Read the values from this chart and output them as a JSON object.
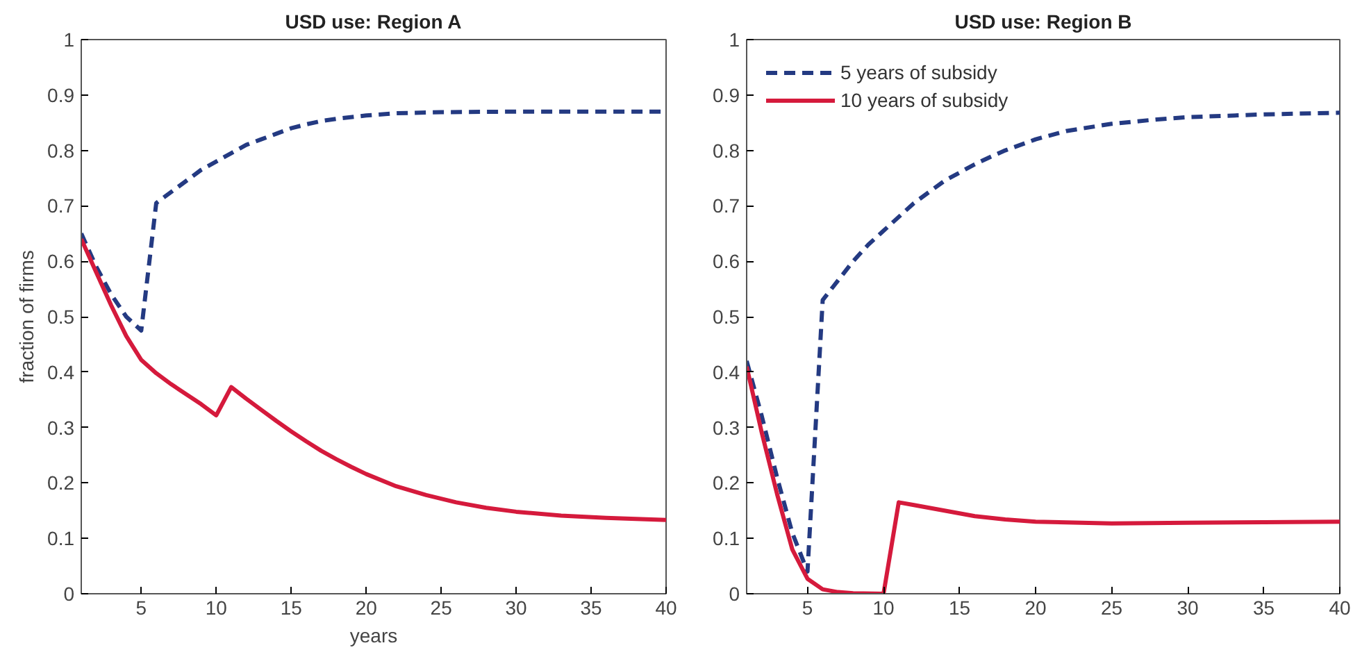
{
  "chart_data": [
    {
      "type": "line",
      "title": "USD use: Region A",
      "xlabel": "years",
      "ylabel": "fraction of firms",
      "xlim": [
        1,
        40
      ],
      "ylim": [
        0,
        1
      ],
      "xticks": [
        5,
        10,
        15,
        20,
        25,
        30,
        35,
        40
      ],
      "yticks": [
        0,
        0.1,
        0.2,
        0.3,
        0.4,
        0.5,
        0.6,
        0.7,
        0.8,
        0.9,
        1
      ],
      "grid": false,
      "legend": false,
      "series": [
        {
          "color": "#243a82",
          "line_style": "dashed",
          "x": [
            1,
            2,
            3,
            4,
            5,
            6,
            7,
            8,
            9,
            10,
            11,
            12,
            13,
            14,
            15,
            16,
            17,
            18,
            20,
            22,
            25,
            30,
            40
          ],
          "values": [
            0.65,
            0.59,
            0.54,
            0.5,
            0.475,
            0.705,
            0.725,
            0.745,
            0.765,
            0.78,
            0.795,
            0.81,
            0.82,
            0.83,
            0.84,
            0.847,
            0.853,
            0.857,
            0.863,
            0.867,
            0.869,
            0.87,
            0.87
          ]
        },
        {
          "color": "#d51a3c",
          "line_style": "solid",
          "x": [
            1,
            2,
            3,
            4,
            5,
            6,
            7,
            8,
            9,
            10,
            11,
            12,
            13,
            14,
            15,
            16,
            17,
            18,
            19,
            20,
            22,
            24,
            26,
            28,
            30,
            33,
            36,
            40
          ],
          "values": [
            0.64,
            0.58,
            0.52,
            0.465,
            0.422,
            0.398,
            0.378,
            0.36,
            0.342,
            0.322,
            0.373,
            0.352,
            0.332,
            0.312,
            0.293,
            0.275,
            0.258,
            0.243,
            0.229,
            0.216,
            0.194,
            0.178,
            0.165,
            0.155,
            0.148,
            0.141,
            0.137,
            0.133
          ]
        }
      ]
    },
    {
      "type": "line",
      "title": "USD use: Region B",
      "xlim": [
        1,
        40
      ],
      "ylim": [
        0,
        1
      ],
      "xticks": [
        5,
        10,
        15,
        20,
        25,
        30,
        35,
        40
      ],
      "yticks": [
        0,
        0.1,
        0.2,
        0.3,
        0.4,
        0.5,
        0.6,
        0.7,
        0.8,
        0.9,
        1
      ],
      "grid": false,
      "legend": "top left",
      "series": [
        {
          "name": "5 years of subsidy",
          "color": "#243a82",
          "line_style": "dashed",
          "x": [
            1,
            2,
            3,
            4,
            5,
            6,
            7,
            8,
            9,
            10,
            11,
            12,
            13,
            14,
            15,
            16,
            17,
            18,
            20,
            22,
            25,
            28,
            30,
            35,
            40
          ],
          "values": [
            0.42,
            0.32,
            0.21,
            0.11,
            0.04,
            0.53,
            0.565,
            0.6,
            0.63,
            0.655,
            0.68,
            0.705,
            0.725,
            0.745,
            0.76,
            0.775,
            0.788,
            0.8,
            0.82,
            0.835,
            0.848,
            0.856,
            0.86,
            0.865,
            0.868
          ]
        },
        {
          "name": "10 years of subsidy",
          "color": "#d51a3c",
          "line_style": "solid",
          "x": [
            1,
            2,
            3,
            4,
            5,
            6,
            7,
            8,
            10,
            11,
            12,
            14,
            16,
            18,
            20,
            25,
            30,
            35,
            40
          ],
          "values": [
            0.41,
            0.29,
            0.18,
            0.08,
            0.027,
            0.008,
            0.003,
            0.001,
            0.0,
            0.165,
            0.16,
            0.15,
            0.14,
            0.134,
            0.13,
            0.127,
            0.128,
            0.129,
            0.13
          ]
        }
      ]
    }
  ]
}
